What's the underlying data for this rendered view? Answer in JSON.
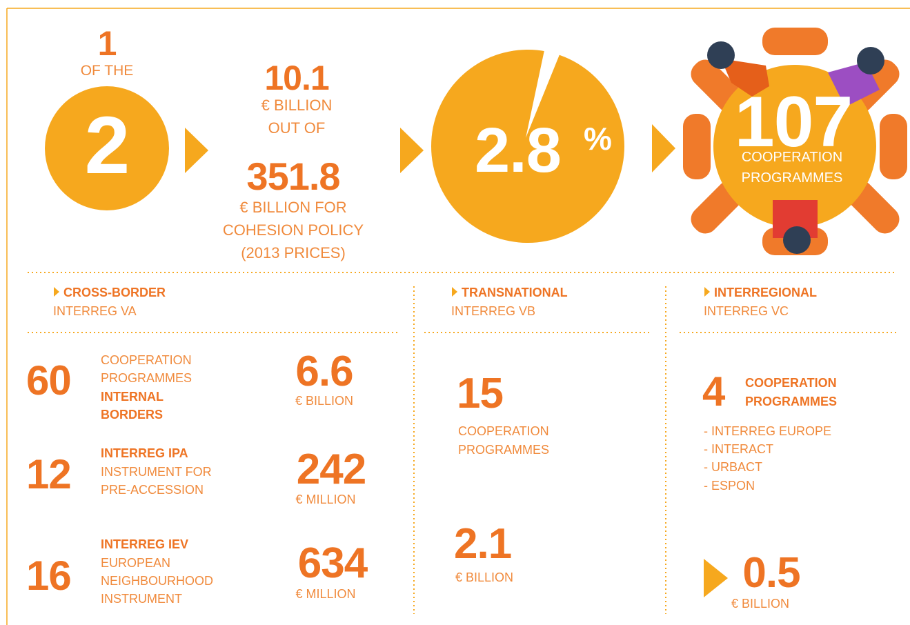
{
  "top": {
    "rank": {
      "number": "1",
      "of": "OF THE",
      "total": "2"
    },
    "budget": {
      "amount": "10.1",
      "unit": "€ BILLION",
      "out_of": "OUT OF",
      "total": "351.8",
      "lines": [
        "€ BILLION FOR",
        "COHESION POLICY",
        "(2013 PRICES)"
      ]
    },
    "share": {
      "value": 2.8,
      "suffix": "%"
    },
    "programmes": {
      "number": "107",
      "lines": [
        "COOPERATION",
        "PROGRAMMES"
      ]
    }
  },
  "cross_border": {
    "title": "CROSS-BORDER",
    "subtitle": "INTERREG VA",
    "items": [
      {
        "count": "60",
        "lines": [
          "COOPERATION",
          "PROGRAMMES"
        ],
        "bold": [
          "INTERNAL",
          "BORDERS"
        ],
        "amount": "6.6",
        "unit": "€ BILLION"
      },
      {
        "count": "12",
        "bold": [
          "INTERREG IPA"
        ],
        "lines": [
          "INSTRUMENT FOR",
          "PRE-ACCESSION"
        ],
        "amount": "242",
        "unit": "€ MILLION"
      },
      {
        "count": "16",
        "bold": [
          "INTERREG IEV"
        ],
        "lines": [
          "EUROPEAN",
          "NEIGHBOURHOOD",
          "INSTRUMENT"
        ],
        "amount": "634",
        "unit": "€ MILLION"
      }
    ]
  },
  "transnational": {
    "title": "TRANSNATIONAL",
    "subtitle": "INTERREG VB",
    "count": "15",
    "lines": [
      "COOPERATION",
      "PROGRAMMES"
    ],
    "amount": "2.1",
    "unit": "€ BILLION"
  },
  "interregional": {
    "title": "INTERREGIONAL",
    "subtitle": "INTERREG VC",
    "count": "4",
    "bold": [
      "COOPERATION",
      "PROGRAMMES"
    ],
    "list": [
      "- INTERREG EUROPE",
      "- INTERACT",
      "- URBACT",
      "- ESPON"
    ],
    "amount": "0.5",
    "unit": "€ BILLION"
  }
}
